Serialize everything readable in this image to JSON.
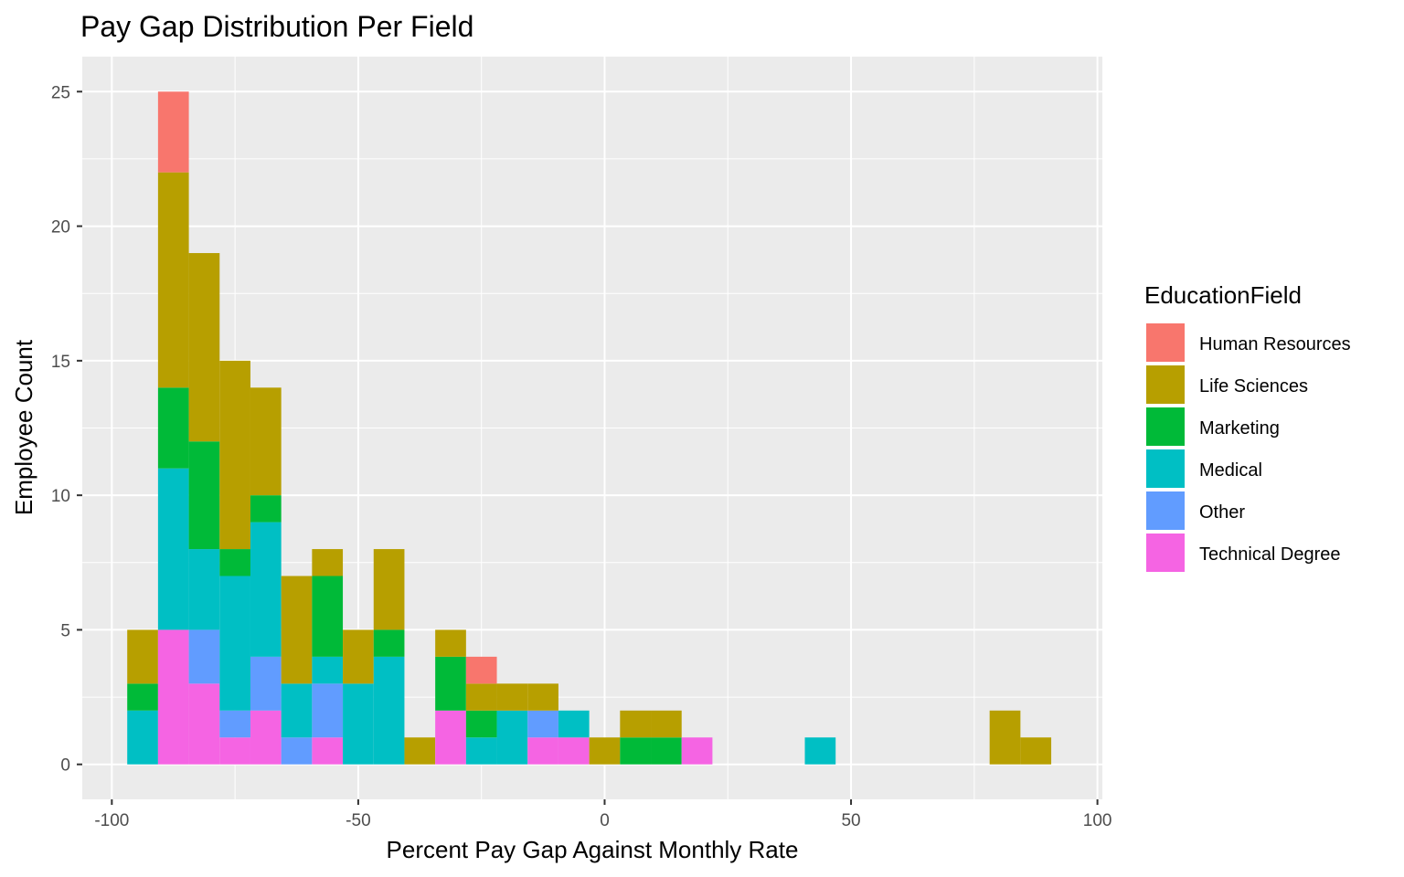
{
  "chart_data": {
    "type": "bar",
    "subtype": "stacked-histogram",
    "title": "Pay Gap Distribution Per Field",
    "xlabel": "Percent Pay Gap Against Monthly Rate",
    "ylabel": "Employee Count",
    "xlim": [
      -106,
      101
    ],
    "ylim": [
      -1.3,
      26.3
    ],
    "xticks": [
      -100,
      -50,
      0,
      50,
      100
    ],
    "xtick_labels": [
      "-100",
      "-50",
      "0",
      "50",
      "100"
    ],
    "yticks": [
      0,
      5,
      10,
      15,
      20,
      25
    ],
    "ytick_labels": [
      "0",
      "5",
      "10",
      "15",
      "20",
      "25"
    ],
    "grid": true,
    "legend": {
      "title": "EducationField",
      "placement": "right",
      "entries": [
        "Human Resources",
        "Life Sciences",
        "Marketing",
        "Medical",
        "Other",
        "Technical Degree"
      ]
    },
    "colors": {
      "Human Resources": "#F8766D",
      "Life Sciences": "#B79F00",
      "Marketing": "#00BA38",
      "Medical": "#00BFC4",
      "Other": "#619CFF",
      "Technical Degree": "#F564E3"
    },
    "stack_order_bottom_to_top": [
      "Technical Degree",
      "Other",
      "Medical",
      "Marketing",
      "Life Sciences",
      "Human Resources"
    ],
    "bin_centers": [
      -93.75,
      -87.5,
      -81.25,
      -75,
      -68.75,
      -62.5,
      -56.25,
      -50,
      -43.75,
      -37.5,
      -31.25,
      -25,
      -18.75,
      -12.5,
      -6.25,
      0,
      6.25,
      12.5,
      18.75,
      25,
      31.25,
      37.5,
      43.75,
      50,
      56.25,
      62.5,
      68.75,
      75,
      81.25,
      87.5
    ],
    "bin_width": 6.25,
    "series": [
      {
        "name": "Technical Degree",
        "values": [
          0,
          5,
          3,
          1,
          2,
          0,
          1,
          0,
          0,
          0,
          2,
          0,
          0,
          1,
          1,
          0,
          0,
          0,
          1,
          0,
          0,
          0,
          0,
          0,
          0,
          0,
          0,
          0,
          0,
          0
        ]
      },
      {
        "name": "Other",
        "values": [
          0,
          0,
          2,
          1,
          2,
          1,
          2,
          0,
          0,
          0,
          0,
          0,
          0,
          1,
          0,
          0,
          0,
          0,
          0,
          0,
          0,
          0,
          0,
          0,
          0,
          0,
          0,
          0,
          0,
          0
        ]
      },
      {
        "name": "Medical",
        "values": [
          2,
          6,
          3,
          5,
          5,
          2,
          1,
          3,
          4,
          0,
          0,
          1,
          2,
          0,
          1,
          0,
          0,
          0,
          0,
          0,
          0,
          0,
          1,
          0,
          0,
          0,
          0,
          0,
          0,
          0
        ]
      },
      {
        "name": "Marketing",
        "values": [
          1,
          3,
          4,
          1,
          1,
          0,
          3,
          0,
          1,
          0,
          2,
          1,
          0,
          0,
          0,
          0,
          1,
          1,
          0,
          0,
          0,
          0,
          0,
          0,
          0,
          0,
          0,
          0,
          0,
          0
        ]
      },
      {
        "name": "Life Sciences",
        "values": [
          2,
          8,
          7,
          7,
          4,
          4,
          1,
          2,
          3,
          1,
          1,
          1,
          1,
          1,
          0,
          1,
          1,
          1,
          0,
          0,
          0,
          0,
          0,
          0,
          0,
          0,
          0,
          0,
          2,
          1
        ]
      },
      {
        "name": "Human Resources",
        "values": [
          0,
          3,
          0,
          0,
          0,
          0,
          0,
          0,
          0,
          0,
          0,
          1,
          0,
          0,
          0,
          0,
          0,
          0,
          0,
          0,
          0,
          0,
          0,
          0,
          0,
          0,
          0,
          0,
          0,
          0
        ]
      }
    ]
  }
}
